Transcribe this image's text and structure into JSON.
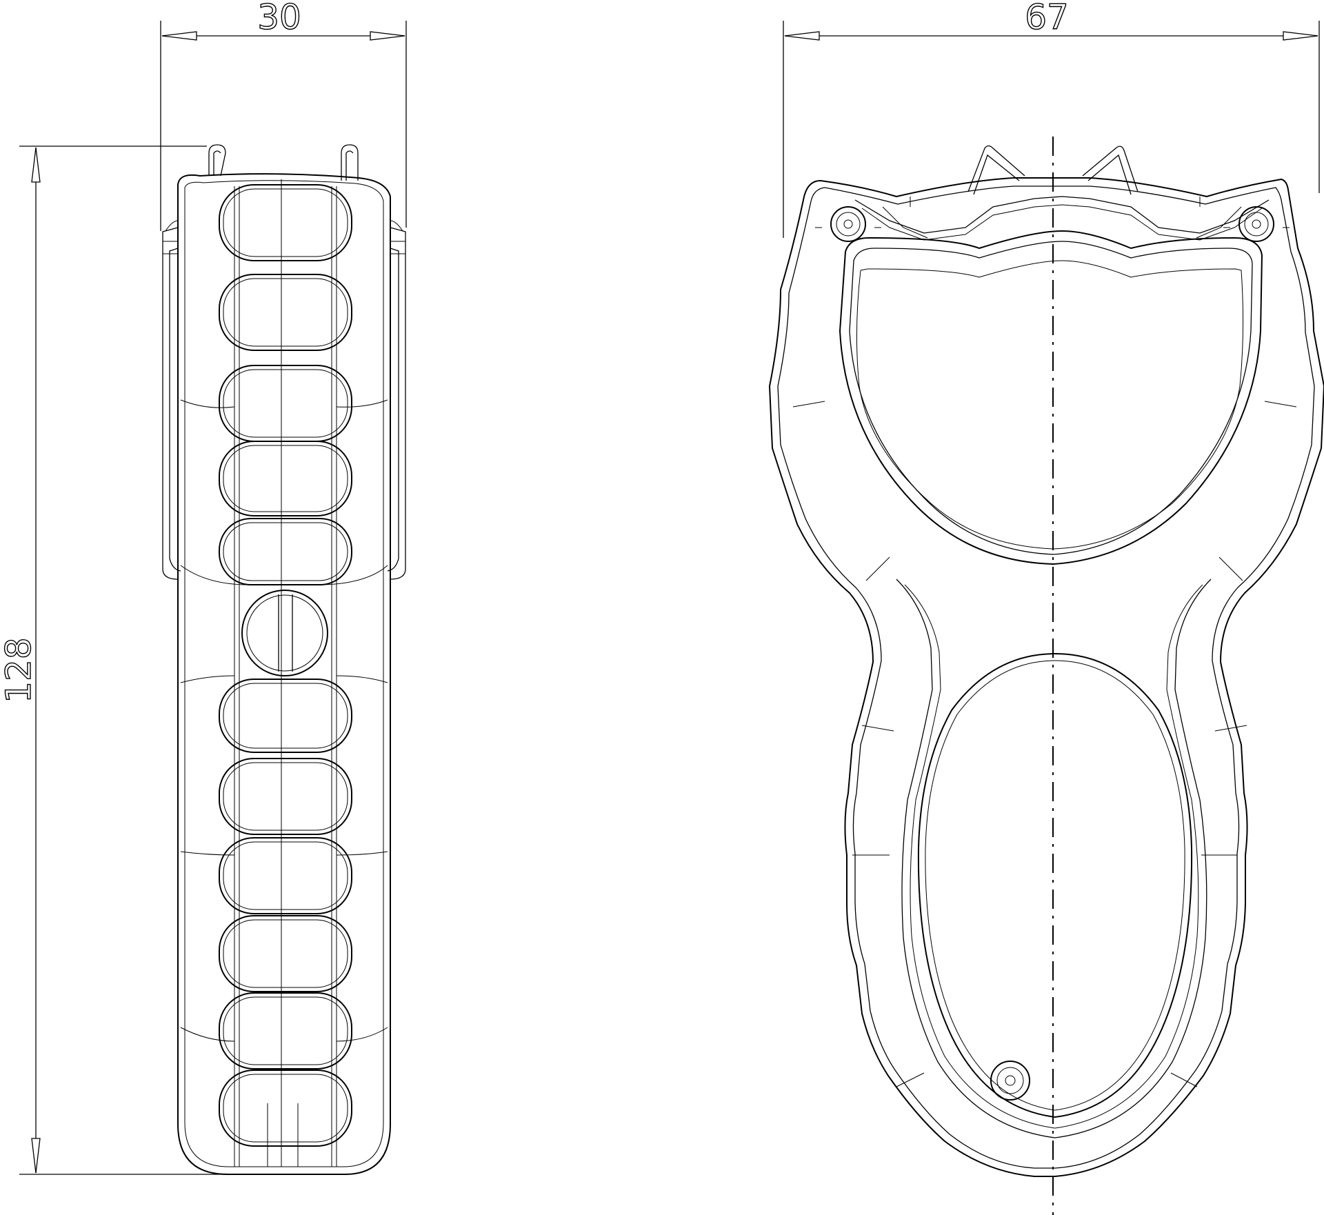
{
  "dimensions": {
    "side_width": "30",
    "front_width": "67",
    "height": "128"
  }
}
